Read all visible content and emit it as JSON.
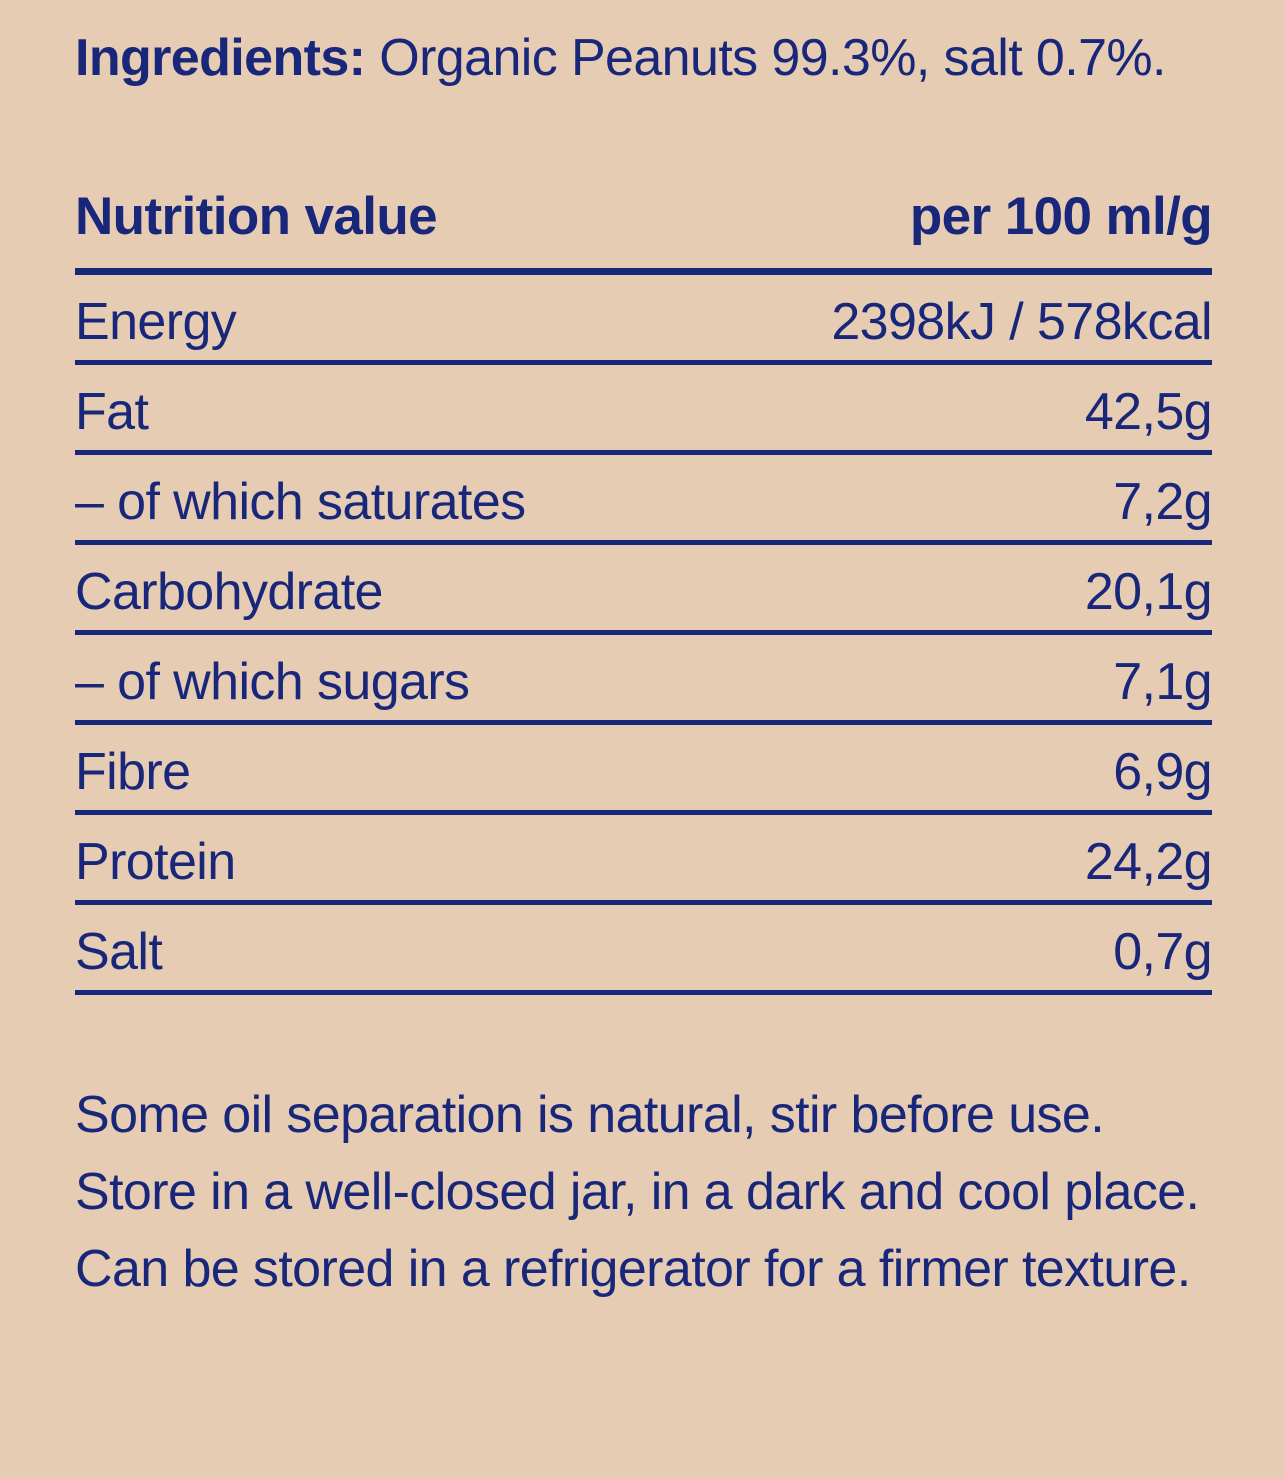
{
  "colors": {
    "background": "#e6ccb3",
    "text": "#19277b"
  },
  "ingredients": {
    "label": "Ingredients:",
    "text": " Organic Peanuts 99.3%, salt 0.7%."
  },
  "nutrition_table": {
    "header": {
      "title": "Nutrition value",
      "per_column": "per 100 ml/g"
    },
    "rows": [
      {
        "name": "Energy",
        "value": "2398kJ / 578kcal"
      },
      {
        "name": "Fat",
        "value": "42,5g"
      },
      {
        "name": "– of which saturates",
        "value": "7,2g"
      },
      {
        "name": "Carbohydrate",
        "value": "20,1g"
      },
      {
        "name": "– of which sugars",
        "value": "7,1g"
      },
      {
        "name": "Fibre",
        "value": "6,9g"
      },
      {
        "name": "Protein",
        "value": "24,2g"
      },
      {
        "name": "Salt",
        "value": "0,7g"
      }
    ]
  },
  "storage_note": "Some oil separation is natural, stir before use. Store in a well-closed jar, in a dark and cool place. Can be stored in a refrigerator for a firmer texture."
}
